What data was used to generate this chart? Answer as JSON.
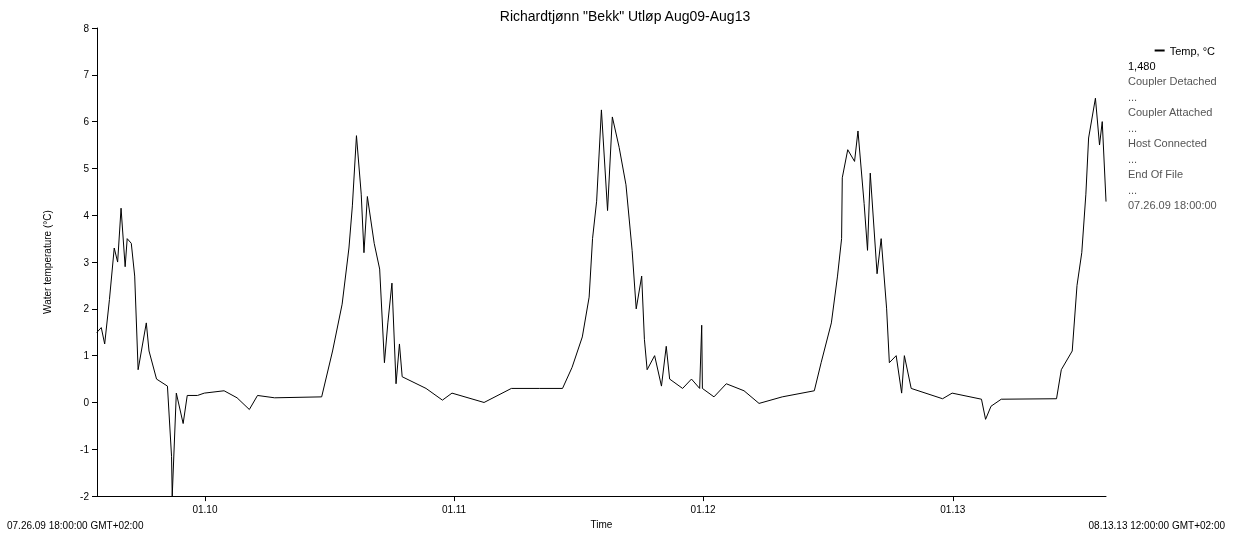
{
  "chart_data": {
    "type": "line",
    "title": "Richardtjønn \"Bekk\" Utløp Aug09-Aug13",
    "xlabel": "Time",
    "ylabel": "Water temperature (°C)",
    "x": [
      "2009-07-26T18:00",
      "2009-08-02",
      "2009-08-07",
      "2009-08-14",
      "2009-08-21",
      "2009-08-26",
      "2009-08-31",
      "2009-09-06",
      "2009-09-09",
      "2009-09-15",
      "2009-09-20",
      "2009-09-25",
      "2009-10-07",
      "2009-10-11",
      "2009-10-22",
      "2009-11-07",
      "2009-11-13",
      "2009-11-14",
      "2009-11-20",
      "2009-11-30",
      "2009-12-06",
      "2009-12-21",
      "2009-12-31",
      "2010-01-29",
      "2010-02-17",
      "2010-03-07",
      "2010-03-19",
      "2010-04-13",
      "2010-06-21",
      "2010-07-07",
      "2010-07-21",
      "2010-07-31",
      "2010-08-05",
      "2010-08-11",
      "2010-08-18",
      "2010-08-22",
      "2010-08-27",
      "2010-09-06",
      "2010-09-14",
      "2010-09-21",
      "2010-09-26",
      "2010-10-02",
      "2010-10-08",
      "2010-10-13",
      "2010-10-17",
      "2010-11-21",
      "2010-12-15",
      "2010-12-29",
      "2011-02-14",
      "2011-03-26",
      "2011-05-06",
      "2011-06-09",
      "2011-06-23",
      "2011-07-08",
      "2011-07-18",
      "2011-07-23",
      "2011-07-29",
      "2011-08-05",
      "2011-08-14",
      "2011-08-21",
      "2011-08-31",
      "2011-09-10",
      "2011-09-19",
      "2011-09-25",
      "2011-10-03",
      "2011-10-07",
      "2011-10-11",
      "2011-10-22",
      "2011-11-01",
      "2011-11-08",
      "2011-11-13",
      "2011-12-02",
      "2011-12-15",
      "2011-12-27",
      "2011-12-30",
      "2011-12-31",
      "2012-01-17",
      "2012-02-04",
      "2012-03-01",
      "2012-03-23",
      "2012-04-26",
      "2012-06-12",
      "2012-06-22",
      "2012-07-07",
      "2012-07-16",
      "2012-07-22",
      "2012-07-23",
      "2012-07-31",
      "2012-08-10",
      "2012-08-15",
      "2012-08-24",
      "2012-08-29",
      "2012-09-02",
      "2012-09-12",
      "2012-09-18",
      "2012-09-26",
      "2012-09-30",
      "2012-10-10",
      "2012-10-18",
      "2012-10-22",
      "2012-11-01",
      "2012-12-17",
      "2012-12-31",
      "2013-02-12",
      "2013-02-18",
      "2013-02-26",
      "2013-03-13",
      "2013-06-02",
      "2013-06-09",
      "2013-06-25",
      "2013-07-02",
      "2013-07-09",
      "2013-07-15",
      "2013-07-19",
      "2013-07-29",
      "2013-08-04",
      "2013-08-08",
      "2013-08-13T12:00"
    ],
    "series": [
      {
        "name": "Temp, °C",
        "color": "#000000",
        "values": [
          1.5,
          1.6,
          1.25,
          2.2,
          3.3,
          3.0,
          4.15,
          2.9,
          3.5,
          3.4,
          2.7,
          0.7,
          1.7,
          1.1,
          0.5,
          0.35,
          -1.15,
          -2,
          0.2,
          -0.45,
          0.15,
          0.15,
          0.2,
          0.25,
          0.1,
          -0.15,
          0.15,
          0.1,
          0.12,
          1.1,
          2.1,
          3.3,
          4.2,
          5.7,
          4.45,
          3.2,
          4.4,
          3.4,
          2.85,
          0.85,
          1.7,
          2.55,
          0.4,
          1.25,
          0.55,
          0.3,
          0.05,
          0.2,
          0.0,
          0.3,
          0.3,
          0.3,
          0.75,
          1.4,
          2.25,
          3.5,
          4.3,
          6.25,
          4.1,
          6.1,
          5.45,
          4.65,
          3.25,
          2.0,
          2.7,
          1.35,
          0.7,
          1.0,
          0.35,
          1.2,
          0.5,
          0.3,
          0.5,
          0.3,
          1.65,
          0.3,
          0.12,
          0.4,
          0.25,
          -0.02,
          0.12,
          0.25,
          0.85,
          1.7,
          2.7,
          3.5,
          4.8,
          5.4,
          5.15,
          5.8,
          4.25,
          3.25,
          4.9,
          2.75,
          3.5,
          2.0,
          0.85,
          1.0,
          0.2,
          1.0,
          0.3,
          0.08,
          0.2,
          0.07,
          -0.36,
          -0.08,
          0.07,
          0.08,
          0.7,
          1.1,
          2.5,
          3.2,
          4.45,
          5.65,
          6.5,
          5.5,
          6.0,
          4.3
        ]
      }
    ],
    "xlim": [
      "2009-07-26T18:00",
      "2013-08-13T12:00"
    ],
    "xticks": [
      {
        "value": "2010-01-01",
        "label": "01.10"
      },
      {
        "value": "2011-01-01",
        "label": "01.11"
      },
      {
        "value": "2012-01-01",
        "label": "01.12"
      },
      {
        "value": "2013-01-01",
        "label": "01.13"
      }
    ],
    "ylim": [
      -2,
      8
    ],
    "yticks": [
      -2,
      -1,
      0,
      1,
      2,
      3,
      4,
      5,
      6,
      7,
      8
    ],
    "grid": false,
    "legend": "right",
    "marker": "none",
    "line_style": "solid",
    "annotations": [
      "1,480",
      "Coupler Detached",
      "...",
      "Coupler Attached",
      "...",
      "Host Connected",
      "...",
      "End Of File",
      "...",
      "07.26.09 18:00:00",
      "07.26.09 18:00:00 GMT+02:00",
      "08.13.13 12:00:00 GMT+02:00"
    ]
  }
}
